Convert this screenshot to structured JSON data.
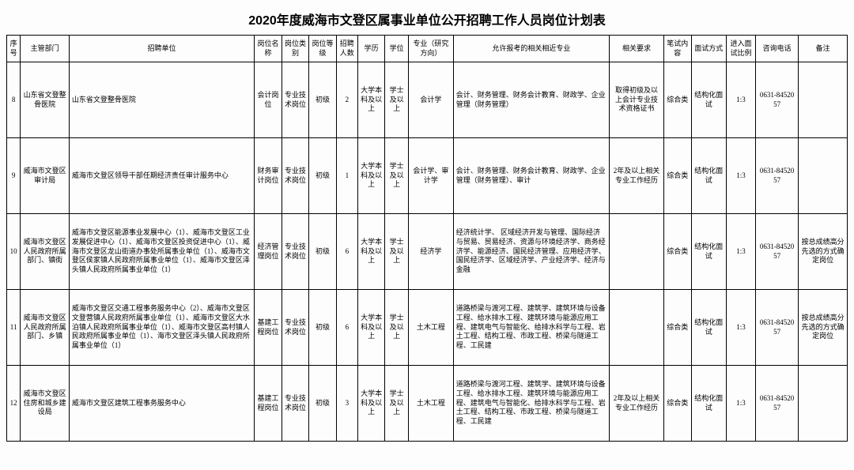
{
  "title": "2020年度威海市文登区属事业单位公开招聘工作人员岗位计划表",
  "headers": {
    "seq": "序号",
    "dept": "主管部门",
    "unit": "招聘单位",
    "pname": "岗位名称",
    "ptype": "岗位类别",
    "plvl": "岗位等级",
    "num": "招聘人数",
    "edu": "学历",
    "deg": "学位",
    "maj": "专业（研究方向）",
    "near": "允许报考的相关相近专业",
    "req": "相关要求",
    "exam": "笔试内容",
    "ivw": "面试方式",
    "ratio": "进入面试比例",
    "tel": "咨询电话",
    "note": "备注"
  },
  "rows": [
    {
      "seq": "8",
      "dept": "山东省文登整骨医院",
      "unit": "山东省文登整骨医院",
      "pname": "会计岗位",
      "ptype": "专业技术岗位",
      "plvl": "初级",
      "num": "2",
      "edu": "大学本科及以上",
      "deg": "学士及以上",
      "maj": "会计学",
      "near": "会计、财务管理、财务会计教育、财政学、企业管理（财务管理）",
      "req": "取得初级及以上会计专业技术资格证书",
      "exam": "综合类",
      "ivw": "结构化面试",
      "ratio": "1:3",
      "tel": "0631-8452057",
      "note": ""
    },
    {
      "seq": "9",
      "dept": "威海市文登区审计局",
      "unit": "威海市文登区领导干部任期经济责任审计服务中心",
      "pname": "财务审计岗位",
      "ptype": "专业技术岗位",
      "plvl": "初级",
      "num": "1",
      "edu": "大学本科及以上",
      "deg": "学士及以上",
      "maj": "会计学、审计学",
      "near": "会计、财务管理、财务会计教育、财政学、企业管理（财务管理）、审计",
      "req": "2年及以上相关专业工作经历",
      "exam": "综合类",
      "ivw": "结构化面试",
      "ratio": "1:3",
      "tel": "0631-8452057",
      "note": ""
    },
    {
      "seq": "10",
      "dept": "威海市文登区人民政府所属部门、镇街",
      "unit": "威海市文登区能源事业发展中心（1）、威海市文登区工业发展促进中心（1）、威海市文登区投资促进中心（1）、威海市文登区龙山街道办事处所属事业单位（1）、威海市文登区侯家镇人民政府所属事业单位（1）、威海市文登区泽头镇人民政府所属事业单位（1）",
      "pname": "经济管理岗位",
      "ptype": "专业技术岗位",
      "plvl": "初级",
      "num": "6",
      "edu": "大学本科及以上",
      "deg": "学士及以上",
      "maj": "经济学",
      "near": "经济统计学、 区域经济开发与管理、国际经济与贸易、贸易经济、资源与环境经济学、商务经济学、能源经济、国民经济管理、应用经济学、国民经济学、区域经济学、产业经济学、经济与金融",
      "req": "",
      "exam": "综合类",
      "ivw": "结构化面试",
      "ratio": "1:3",
      "tel": "0631-8452057",
      "note": "按总成绩高分先选的方式确定岗位"
    },
    {
      "seq": "11",
      "dept": "威海市文登区人民政府所属部门、乡镇",
      "unit": "威海市文登区交通工程事务服务中心（2）、威海市文登区文登营镇人民政府所属事业单位（1）、威海市文登区大水泊镇人民政府所属事业单位（1）、威海市文登区高村镇人民政府所属事业单位（1）、海市文登区泽头镇人民政府所属事业单位（1）",
      "pname": "基建工程岗位",
      "ptype": "专业技术岗位",
      "plvl": "初级",
      "num": "6",
      "edu": "大学本科及以上",
      "deg": "学士及以上",
      "maj": "土木工程",
      "near": "道路桥梁与渡河工程、建筑学、建筑环境与设备工程、给水排水工程、建筑环境与能源应用工程、建筑电气与智能化、给排水科学与工程、岩土工程、结构工程、市政工程、桥梁与隧道工程、工民建",
      "req": "",
      "exam": "综合类",
      "ivw": "结构化面试",
      "ratio": "1:3",
      "tel": "0631-8452057",
      "note": "按总成绩高分先选的方式确定岗位"
    },
    {
      "seq": "12",
      "dept": "威海市文登区住房和城乡建设局",
      "unit": "威海市文登区建筑工程事务服务中心",
      "pname": "基建工程岗位",
      "ptype": "专业技术岗位",
      "plvl": "初级",
      "num": "3",
      "edu": "大学本科及以上",
      "deg": "学士及以上",
      "maj": "土木工程",
      "near": "道路桥梁与渡河工程、建筑学、建筑环境与设备工程、给水排水工程、建筑环境与能源应用工程、建筑电气与智能化、给排水科学与工程、岩土工程、结构工程、市政工程、桥梁与隧道工程、工民建",
      "req": "2年及以上相关专业工作经历",
      "exam": "综合类",
      "ivw": "结构化面试",
      "ratio": "1:3",
      "tel": "0631-8452057",
      "note": ""
    }
  ]
}
